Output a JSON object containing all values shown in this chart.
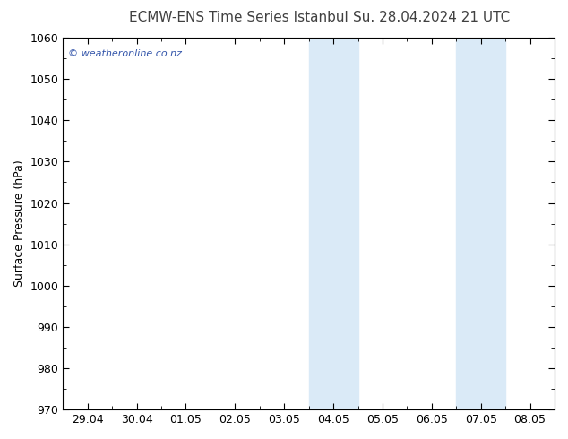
{
  "title_left": "ECMW-ENS Time Series Istanbul",
  "title_right": "Su. 28.04.2024 21 UTC",
  "ylabel": "Surface Pressure (hPa)",
  "ylim": [
    970,
    1060
  ],
  "yticks": [
    970,
    980,
    990,
    1000,
    1010,
    1020,
    1030,
    1040,
    1050,
    1060
  ],
  "x_labels": [
    "29.04",
    "30.04",
    "01.05",
    "02.05",
    "03.05",
    "04.05",
    "05.05",
    "06.05",
    "07.05",
    "08.05"
  ],
  "x_positions": [
    0,
    1,
    2,
    3,
    4,
    5,
    6,
    7,
    8,
    9
  ],
  "xlim": [
    -0.5,
    9.5
  ],
  "shaded_bands": [
    {
      "xmin": 4.5,
      "xmax": 5.0,
      "color": "#daeaf7"
    },
    {
      "xmin": 5.0,
      "xmax": 5.5,
      "color": "#daeaf7"
    },
    {
      "xmin": 7.5,
      "xmax": 8.0,
      "color": "#daeaf7"
    },
    {
      "xmin": 8.0,
      "xmax": 8.5,
      "color": "#daeaf7"
    }
  ],
  "plot_bg_color": "#ffffff",
  "border_color": "#000000",
  "watermark_text": "© weatheronline.co.nz",
  "watermark_color": "#3355aa",
  "title_color": "#404040",
  "title_fontsize": 11,
  "tick_label_fontsize": 9,
  "ylabel_fontsize": 9,
  "figure_bg": "#ffffff"
}
